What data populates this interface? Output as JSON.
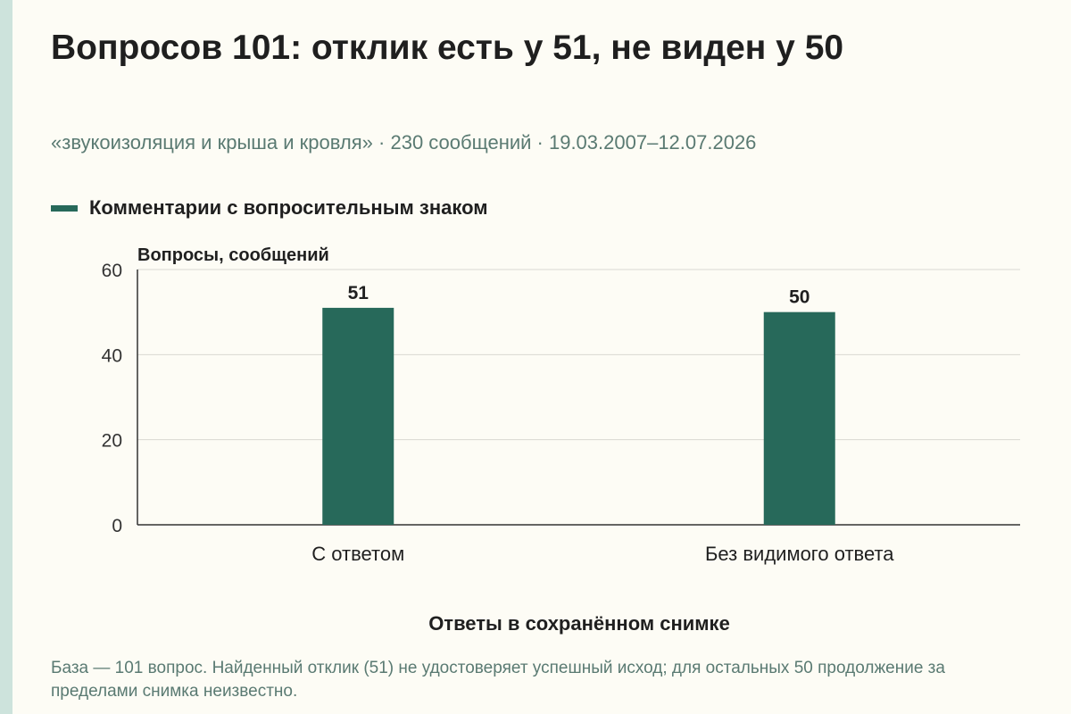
{
  "title": "Вопросов 101: отклик есть у 51, не виден у 50",
  "subtitle": "«звукоизоляция и крыша и кровля» · 230 сообщений · 19.03.2007–12.07.2026",
  "note": "База — 101 вопрос. Найденный отклик (51) не удостоверяет успешный исход; для остальных 50 продолжение за пределами снимка неизвестно.",
  "colors": {
    "bar": "#27695a",
    "grid": "#d9d9d2",
    "axis": "#333333"
  },
  "chart_data": {
    "type": "bar",
    "categories": [
      "С ответом",
      "Без видимого ответа"
    ],
    "series": [
      {
        "name": "Комментарии с вопросительным знаком",
        "values": [
          51,
          50
        ]
      }
    ],
    "data_labels": [
      "51",
      "50"
    ],
    "ylabel": "Вопросы, сообщений",
    "xlabel": "Ответы в сохранённом снимке",
    "ylim": [
      0,
      60
    ],
    "yticks": [
      0,
      20,
      40,
      60
    ],
    "grid": true,
    "legend_position": "top-left"
  }
}
